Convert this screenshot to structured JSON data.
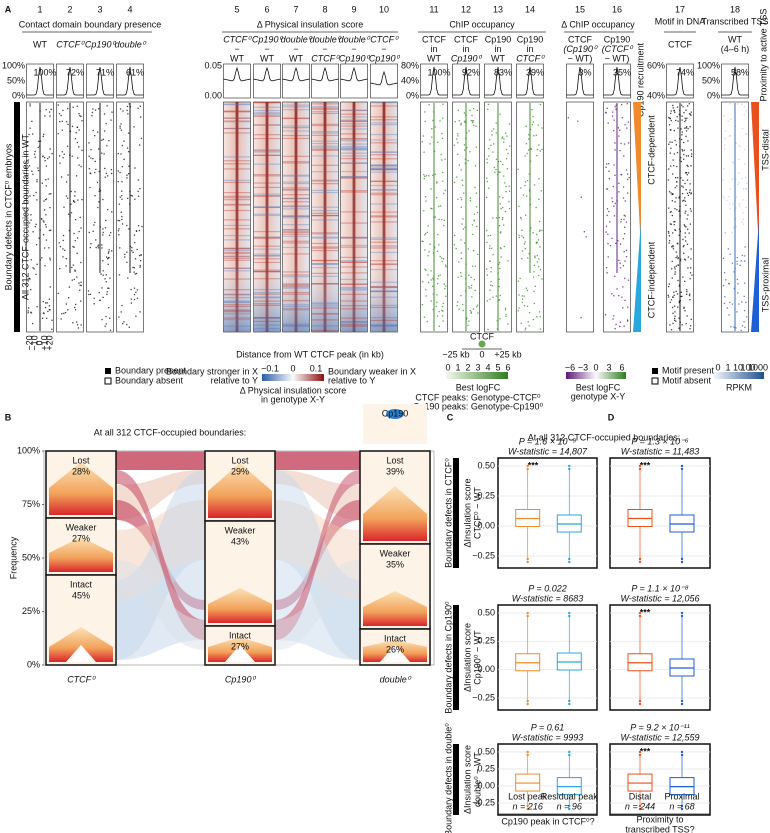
{
  "panel_a": {
    "label": "A",
    "column_numbers": [
      "1",
      "2",
      "3",
      "4",
      "5",
      "6",
      "7",
      "8",
      "9",
      "10",
      "11",
      "12",
      "13",
      "14",
      "15",
      "16",
      "17",
      "18"
    ],
    "groups": [
      "Contact domain boundary presence",
      "Δ Physical insulation score",
      "ChIP occupancy",
      "Δ ChIP occupancy",
      "Motif in DNA",
      "Transcribed TSS"
    ],
    "columns": [
      {
        "label": [
          "WT"
        ],
        "percent": "100%"
      },
      {
        "label": [
          "CTCF⁰"
        ],
        "percent": "72%"
      },
      {
        "label": [
          "Cp190⁰"
        ],
        "percent": "71%"
      },
      {
        "label": [
          "double⁰"
        ],
        "percent": "61%"
      },
      {
        "label": [
          "CTCF⁰",
          "−",
          "WT"
        ]
      },
      {
        "label": [
          "Cp190⁰",
          "−",
          "WT"
        ]
      },
      {
        "label": [
          "double⁰",
          "−",
          "WT"
        ]
      },
      {
        "label": [
          "double⁰",
          "−",
          "CTCF⁰"
        ]
      },
      {
        "label": [
          "double⁰",
          "−",
          "Cp190⁰"
        ]
      },
      {
        "label": [
          "CTCF⁰",
          "−",
          "Cp190⁰"
        ]
      },
      {
        "label": [
          "CTCF",
          "in",
          "WT"
        ],
        "percent": "100%"
      },
      {
        "label": [
          "CTCF",
          "in",
          "Cp190⁰"
        ],
        "percent": "92%"
      },
      {
        "label": [
          "Cp190",
          "in",
          "WT"
        ],
        "percent": "83%"
      },
      {
        "label": [
          "Cp190",
          "in",
          "CTCF⁰"
        ],
        "percent": "39%"
      },
      {
        "label": [
          "CTCF",
          "(Cp190⁰",
          "− WT)"
        ],
        "percent": "3%"
      },
      {
        "label": [
          "Cp190",
          "(CTCF⁰",
          "− WT)"
        ],
        "percent": "35%"
      },
      {
        "label": [
          "CTCF"
        ],
        "percent": "74%"
      },
      {
        "label": [
          "WT",
          "(4–6 h)"
        ],
        "percent": "58%"
      }
    ],
    "profile_ticks": {
      "presence": [
        "100%",
        "50%",
        "0%"
      ],
      "insulation": [
        "0.05",
        "0.00"
      ],
      "chip": [
        "80%",
        "40%",
        "0%"
      ],
      "motif": [
        "60%",
        "40%"
      ],
      "tss": [
        "100%",
        "50%",
        "0%"
      ]
    },
    "distance_ticks": [
      "−20",
      "−10",
      "0",
      "+10",
      "+20"
    ],
    "row_label_outer": "Boundary defects in CTCF⁰ embryos",
    "row_label_inner": "All 312 CTCF-occupied boundaries in WT",
    "right_labels": {
      "proximity": "Proximity to active TSS",
      "recruitment": "Cp190 recruitment",
      "dependent": "CTCF-dependent",
      "independent": "CTCF-independent",
      "distal": "TSS-distal",
      "proximal": "TSS-proximal"
    },
    "x_axis_title": "Distance from WT CTCF peak (in kb)",
    "legends": {
      "boundary_present": "Boundary present",
      "boundary_absent": "Boundary absent",
      "insulation_ticks": [
        "−0.1",
        "0",
        "0.1"
      ],
      "stronger": [
        "Boundary stronger in X",
        "relative to Y"
      ],
      "weaker": [
        "Boundary weaker in X",
        "relative to Y"
      ],
      "insulation_title": [
        "Δ Physical insulation score",
        "in genotype X-Y"
      ],
      "chip_schematic": [
        "CTCF",
        "−25 kb",
        "0",
        "+25 kb"
      ],
      "chip_ticks": [
        "0",
        "1",
        "2",
        "3",
        "4",
        "5",
        "6"
      ],
      "chip_title": "Best logFC",
      "chip_notes": [
        "CTCF peaks: Genotype-CTCF⁰",
        "Cp190 peaks: Genotype-Cp190⁰"
      ],
      "delta_ticks": [
        "−6",
        "−3",
        "0",
        "3",
        "6"
      ],
      "delta_title": [
        "Best logFC",
        "genotype X-Y"
      ],
      "motif_present": "Motif present",
      "motif_absent": "Motif absent",
      "rpkm_ticks": [
        "0",
        "1",
        "10",
        "100",
        "1000"
      ],
      "rpkm_title": "RPKM"
    }
  },
  "panel_b": {
    "label": "B",
    "title": "At all 312 CTCF-occupied boundaries:",
    "y_label": "Frequency",
    "yticks": [
      "100%",
      "75%",
      "50%",
      "25%",
      "0%"
    ],
    "icon_label": "Cp190",
    "stages": [
      {
        "name": "CTCF⁰",
        "categories": [
          {
            "name": "Lost",
            "percent": "28%"
          },
          {
            "name": "Weaker",
            "percent": "27%"
          },
          {
            "name": "Intact",
            "percent": "45%"
          }
        ]
      },
      {
        "name": "Cp190⁰",
        "categories": [
          {
            "name": "Lost",
            "percent": "29%"
          },
          {
            "name": "Weaker",
            "percent": "43%"
          },
          {
            "name": "Intact",
            "percent": "27%"
          }
        ]
      },
      {
        "name": "double⁰",
        "categories": [
          {
            "name": "Lost",
            "percent": "39%"
          },
          {
            "name": "Weaker",
            "percent": "35%"
          },
          {
            "name": "Intact",
            "percent": "26%"
          }
        ]
      }
    ]
  },
  "panel_cd": {
    "label_c": "C",
    "label_d": "D",
    "title": "At all 312 CTCF-occupied boundaries:",
    "rows": [
      {
        "row_label": "Boundary defects in CTCF⁰",
        "y_label": [
          "ΔInsulation score",
          "CTCF⁰ − WT"
        ],
        "yticks": [
          "0.50",
          "0.25",
          "0.00",
          "−0.25"
        ],
        "c_stats": [
          "P = 1.6 × 10⁻⁹",
          "W-statistic = 14,807"
        ],
        "c_sig": "***",
        "d_stats": [
          "P = 1.3 × 10⁻⁶",
          "W-statistic = 11,483"
        ],
        "d_sig": "***"
      },
      {
        "row_label": "Boundary defects in Cp190⁰",
        "y_label": [
          "ΔInsulation score",
          "Cp190⁰ − WT"
        ],
        "yticks": [
          "0.50",
          "0.25",
          "0.00",
          "−0.25"
        ],
        "c_stats": [
          "P = 0.022",
          "W-statistic = 8683"
        ],
        "d_stats": [
          "P = 1.1 × 10⁻⁸",
          "W-statistic = 12,056"
        ],
        "d_sig": "***"
      },
      {
        "row_label": "Boundary defects in double⁰",
        "y_label": [
          "ΔInsulation score",
          "double⁰ − WT"
        ],
        "yticks": [
          "0.50",
          "0.25",
          "0.00",
          "−0.25"
        ],
        "c_stats": [
          "P = 0.61",
          "W-statistic = 9993"
        ],
        "d_stats": [
          "P = 9.2 × 10⁻¹¹",
          "W-statistic = 12,559"
        ],
        "d_sig": "***"
      }
    ],
    "c_groups": [
      {
        "name": "Lost peak",
        "n": "n = 216"
      },
      {
        "name": "Residual peak",
        "n": "n = 96"
      }
    ],
    "d_groups": [
      {
        "name": "Distal",
        "n": "n = 244"
      },
      {
        "name": "Proximal",
        "n": "n = 68"
      }
    ],
    "c_xlabel": "Cp190 peak in CTCF⁰?",
    "d_xlabel": [
      "Proximity to",
      "transcribed TSS?"
    ]
  }
}
